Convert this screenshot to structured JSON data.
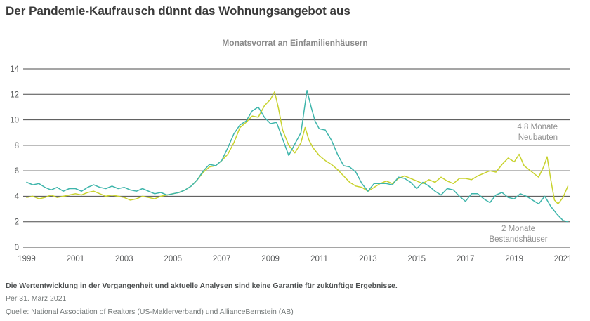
{
  "title": "Der Pandemie-Kaufrausch dünnt das Wohnungsangebot aus",
  "chart_data": {
    "type": "line",
    "title": "Monatsvorrat an Einfamilienhäusern",
    "xlabel": "",
    "ylabel": "",
    "xlim": [
      1999,
      2021.3
    ],
    "ylim": [
      0,
      14
    ],
    "yticks": [
      0,
      2,
      4,
      6,
      8,
      10,
      12,
      14
    ],
    "xticks": [
      1999,
      2001,
      2003,
      2005,
      2007,
      2009,
      2011,
      2013,
      2015,
      2017,
      2019,
      2021
    ],
    "grid": "horizontal",
    "grid_color": "#4b4b4b",
    "tick_color": "#57595a",
    "legend_position": "none",
    "series": [
      {
        "id": "neubauten",
        "name": "Neubauten",
        "color": "#c8d22e",
        "annotation": "4,8 Monate Neubauten",
        "end_value": 4.8,
        "points": [
          [
            1999.0,
            3.9
          ],
          [
            1999.25,
            4.0
          ],
          [
            1999.5,
            3.8
          ],
          [
            1999.75,
            3.9
          ],
          [
            2000.0,
            4.1
          ],
          [
            2000.25,
            3.9
          ],
          [
            2000.5,
            4.0
          ],
          [
            2000.75,
            4.1
          ],
          [
            2001.0,
            4.2
          ],
          [
            2001.25,
            4.1
          ],
          [
            2001.5,
            4.3
          ],
          [
            2001.75,
            4.4
          ],
          [
            2002.0,
            4.2
          ],
          [
            2002.25,
            4.0
          ],
          [
            2002.5,
            4.1
          ],
          [
            2002.75,
            4.0
          ],
          [
            2003.0,
            3.9
          ],
          [
            2003.25,
            3.7
          ],
          [
            2003.5,
            3.8
          ],
          [
            2003.75,
            4.0
          ],
          [
            2004.0,
            3.9
          ],
          [
            2004.25,
            3.8
          ],
          [
            2004.5,
            4.0
          ],
          [
            2004.75,
            4.1
          ],
          [
            2005.0,
            4.2
          ],
          [
            2005.25,
            4.3
          ],
          [
            2005.5,
            4.5
          ],
          [
            2005.75,
            4.8
          ],
          [
            2006.0,
            5.3
          ],
          [
            2006.25,
            5.9
          ],
          [
            2006.5,
            6.3
          ],
          [
            2006.75,
            6.4
          ],
          [
            2007.0,
            6.8
          ],
          [
            2007.25,
            7.3
          ],
          [
            2007.5,
            8.2
          ],
          [
            2007.75,
            9.4
          ],
          [
            2008.0,
            9.8
          ],
          [
            2008.25,
            10.3
          ],
          [
            2008.5,
            10.2
          ],
          [
            2008.75,
            11.1
          ],
          [
            2009.0,
            11.6
          ],
          [
            2009.17,
            12.2
          ],
          [
            2009.33,
            10.9
          ],
          [
            2009.5,
            9.2
          ],
          [
            2009.75,
            8.0
          ],
          [
            2010.0,
            7.4
          ],
          [
            2010.25,
            8.2
          ],
          [
            2010.42,
            9.4
          ],
          [
            2010.58,
            8.4
          ],
          [
            2010.75,
            7.8
          ],
          [
            2011.0,
            7.2
          ],
          [
            2011.25,
            6.8
          ],
          [
            2011.5,
            6.5
          ],
          [
            2011.75,
            6.1
          ],
          [
            2012.0,
            5.6
          ],
          [
            2012.25,
            5.1
          ],
          [
            2012.5,
            4.8
          ],
          [
            2012.75,
            4.7
          ],
          [
            2013.0,
            4.4
          ],
          [
            2013.25,
            4.7
          ],
          [
            2013.5,
            5.0
          ],
          [
            2013.75,
            5.2
          ],
          [
            2014.0,
            5.0
          ],
          [
            2014.25,
            5.4
          ],
          [
            2014.5,
            5.6
          ],
          [
            2014.75,
            5.4
          ],
          [
            2015.0,
            5.2
          ],
          [
            2015.25,
            5.0
          ],
          [
            2015.5,
            5.3
          ],
          [
            2015.75,
            5.1
          ],
          [
            2016.0,
            5.5
          ],
          [
            2016.25,
            5.2
          ],
          [
            2016.5,
            5.0
          ],
          [
            2016.75,
            5.4
          ],
          [
            2017.0,
            5.4
          ],
          [
            2017.25,
            5.3
          ],
          [
            2017.5,
            5.6
          ],
          [
            2017.75,
            5.8
          ],
          [
            2018.0,
            6.0
          ],
          [
            2018.25,
            5.9
          ],
          [
            2018.5,
            6.5
          ],
          [
            2018.75,
            7.0
          ],
          [
            2019.0,
            6.7
          ],
          [
            2019.2,
            7.3
          ],
          [
            2019.4,
            6.4
          ],
          [
            2019.6,
            6.1
          ],
          [
            2019.8,
            5.8
          ],
          [
            2020.0,
            5.5
          ],
          [
            2020.2,
            6.3
          ],
          [
            2020.35,
            7.1
          ],
          [
            2020.5,
            5.3
          ],
          [
            2020.65,
            3.7
          ],
          [
            2020.8,
            3.4
          ],
          [
            2021.0,
            3.9
          ],
          [
            2021.2,
            4.8
          ]
        ]
      },
      {
        "id": "bestandshaeuser",
        "name": "Bestandshäuser",
        "color": "#3eb5ab",
        "annotation": "2 Monate Bestandshäuser",
        "end_value": 2.0,
        "points": [
          [
            1999.0,
            5.1
          ],
          [
            1999.25,
            4.9
          ],
          [
            1999.5,
            5.0
          ],
          [
            1999.75,
            4.7
          ],
          [
            2000.0,
            4.5
          ],
          [
            2000.25,
            4.7
          ],
          [
            2000.5,
            4.4
          ],
          [
            2000.75,
            4.6
          ],
          [
            2001.0,
            4.6
          ],
          [
            2001.25,
            4.4
          ],
          [
            2001.5,
            4.7
          ],
          [
            2001.75,
            4.9
          ],
          [
            2002.0,
            4.7
          ],
          [
            2002.25,
            4.6
          ],
          [
            2002.5,
            4.8
          ],
          [
            2002.75,
            4.6
          ],
          [
            2003.0,
            4.7
          ],
          [
            2003.25,
            4.5
          ],
          [
            2003.5,
            4.4
          ],
          [
            2003.75,
            4.6
          ],
          [
            2004.0,
            4.4
          ],
          [
            2004.25,
            4.2
          ],
          [
            2004.5,
            4.3
          ],
          [
            2004.75,
            4.1
          ],
          [
            2005.0,
            4.2
          ],
          [
            2005.25,
            4.3
          ],
          [
            2005.5,
            4.5
          ],
          [
            2005.75,
            4.8
          ],
          [
            2006.0,
            5.3
          ],
          [
            2006.25,
            6.0
          ],
          [
            2006.5,
            6.5
          ],
          [
            2006.75,
            6.4
          ],
          [
            2007.0,
            6.8
          ],
          [
            2007.25,
            7.8
          ],
          [
            2007.5,
            8.9
          ],
          [
            2007.75,
            9.6
          ],
          [
            2008.0,
            9.9
          ],
          [
            2008.25,
            10.7
          ],
          [
            2008.5,
            11.0
          ],
          [
            2008.75,
            10.2
          ],
          [
            2009.0,
            9.7
          ],
          [
            2009.25,
            9.8
          ],
          [
            2009.5,
            8.5
          ],
          [
            2009.75,
            7.2
          ],
          [
            2010.0,
            8.1
          ],
          [
            2010.25,
            9.0
          ],
          [
            2010.5,
            12.3
          ],
          [
            2010.67,
            11.0
          ],
          [
            2010.83,
            9.9
          ],
          [
            2011.0,
            9.3
          ],
          [
            2011.25,
            9.2
          ],
          [
            2011.5,
            8.4
          ],
          [
            2011.75,
            7.3
          ],
          [
            2012.0,
            6.4
          ],
          [
            2012.25,
            6.3
          ],
          [
            2012.5,
            5.9
          ],
          [
            2012.75,
            5.0
          ],
          [
            2013.0,
            4.4
          ],
          [
            2013.25,
            5.0
          ],
          [
            2013.5,
            5.0
          ],
          [
            2013.75,
            5.0
          ],
          [
            2014.0,
            4.9
          ],
          [
            2014.25,
            5.5
          ],
          [
            2014.5,
            5.4
          ],
          [
            2014.75,
            5.1
          ],
          [
            2015.0,
            4.6
          ],
          [
            2015.25,
            5.1
          ],
          [
            2015.5,
            4.8
          ],
          [
            2015.75,
            4.4
          ],
          [
            2016.0,
            4.1
          ],
          [
            2016.25,
            4.6
          ],
          [
            2016.5,
            4.5
          ],
          [
            2016.75,
            4.0
          ],
          [
            2017.0,
            3.6
          ],
          [
            2017.25,
            4.2
          ],
          [
            2017.5,
            4.2
          ],
          [
            2017.75,
            3.8
          ],
          [
            2018.0,
            3.5
          ],
          [
            2018.25,
            4.1
          ],
          [
            2018.5,
            4.3
          ],
          [
            2018.75,
            3.9
          ],
          [
            2019.0,
            3.8
          ],
          [
            2019.25,
            4.2
          ],
          [
            2019.5,
            4.0
          ],
          [
            2019.75,
            3.7
          ],
          [
            2020.0,
            3.4
          ],
          [
            2020.25,
            4.0
          ],
          [
            2020.5,
            3.2
          ],
          [
            2020.75,
            2.6
          ],
          [
            2021.0,
            2.1
          ],
          [
            2021.2,
            2.0
          ]
        ]
      }
    ]
  },
  "footer": {
    "disclaimer": "Die Wertentwicklung in der Vergangenheit und aktuelle Analysen sind keine Garantie für zukünftige Ergebnisse.",
    "as_of": "Per 31. März 2021",
    "source": "Quelle: National Association of Realtors (US-Maklerverband) und AllianceBernstein (AB)"
  }
}
